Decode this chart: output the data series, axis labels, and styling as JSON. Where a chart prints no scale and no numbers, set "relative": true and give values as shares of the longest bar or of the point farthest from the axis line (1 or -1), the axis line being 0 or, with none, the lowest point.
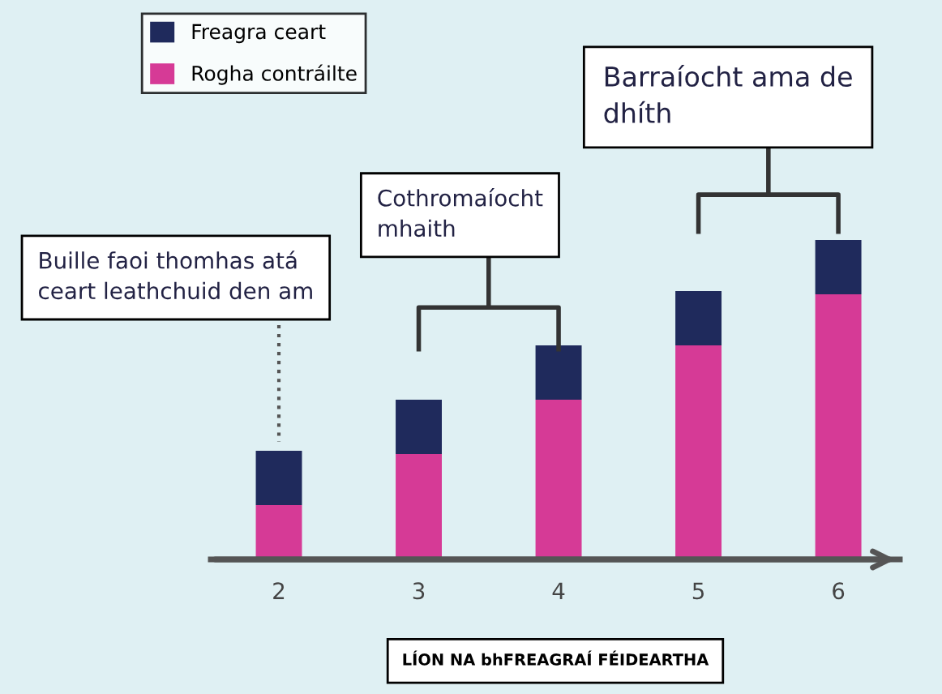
{
  "chart_data": {
    "type": "bar",
    "stacked": true,
    "relative": true,
    "categories": [
      "2",
      "3",
      "4",
      "5",
      "6"
    ],
    "series": [
      {
        "name": "Rogha contráilte",
        "color": "#d63a96",
        "values": [
          0.17,
          0.33,
          0.5,
          0.67,
          0.83
        ]
      },
      {
        "name": "Freagra ceart",
        "color": "#1f2a5c",
        "values": [
          0.17,
          0.17,
          0.17,
          0.17,
          0.17
        ]
      }
    ],
    "xlabel": "LÍON NA bhFREAGRAÍ FÉIDEARTHA",
    "annotations": [
      "Buille faoi thomhas atá\nceart leathchuid den am",
      "Cothromaíocht\nmhaith",
      "Barraíocht ama de\ndhíth"
    ],
    "legend": "top left",
    "grid": false
  }
}
